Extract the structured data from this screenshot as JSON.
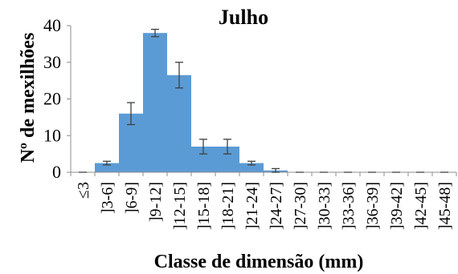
{
  "chart_data": {
    "type": "bar",
    "title": "Julho",
    "xlabel": "Classe de dimensão (mm)",
    "ylabel": "Nº de mexilhões",
    "ylim": [
      0,
      40
    ],
    "yticks": [
      0,
      10,
      20,
      30,
      40
    ],
    "grid": false,
    "bar_color": "#5b9bd5",
    "errorbar_color": "#404040",
    "categories": [
      "≤3",
      "]3-6]",
      "]6-9]",
      "]9-12]",
      "]12-15]",
      "]15-18]",
      "]18-21]",
      "]21-24]",
      "]24-27]",
      "]27-30]",
      "]30-33]",
      "]33-36]",
      "]36-39]",
      "]39-42]",
      "]42-45]",
      "]45-48]"
    ],
    "values": [
      0,
      2.5,
      16,
      38,
      26.5,
      7,
      7,
      2.5,
      0.5,
      0,
      0,
      0,
      0,
      0,
      0,
      0
    ],
    "errors": [
      0,
      0.5,
      3,
      1,
      3.5,
      2,
      2,
      0.5,
      0.5,
      0,
      0,
      0,
      0,
      0,
      0,
      0
    ]
  }
}
